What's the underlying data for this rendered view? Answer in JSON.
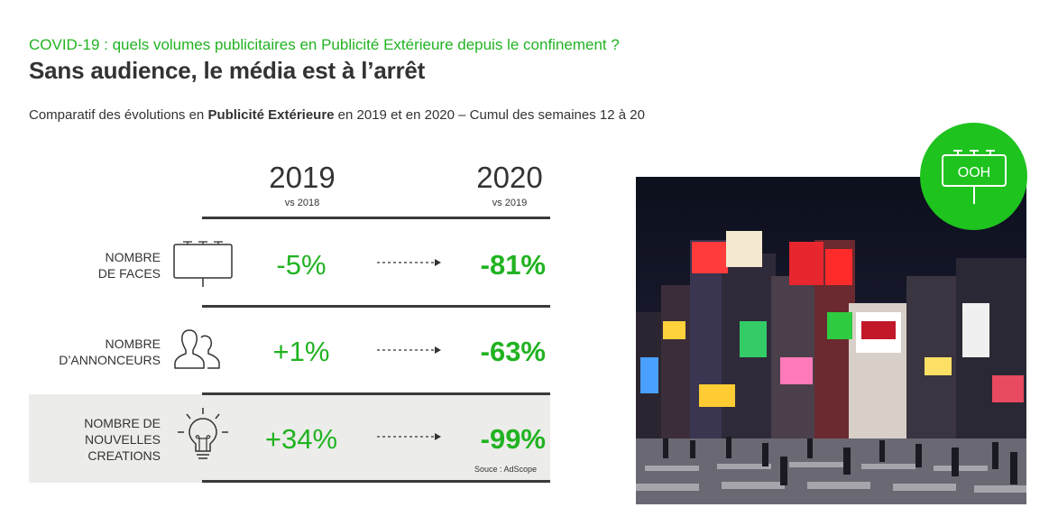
{
  "header": {
    "kicker": "COVID-19 : quels volumes publicitaires en Publicité Extérieure depuis le confinement ?",
    "title": "Sans audience, le média est à l’arrêt",
    "subtitle_pre": "Comparatif des évolutions en ",
    "subtitle_bold": "Publicité Extérieure",
    "subtitle_post": " en 2019 et en 2020 – Cumul des semaines 12 à 20"
  },
  "columns": [
    {
      "year": "2019",
      "sub": "vs 2018"
    },
    {
      "year": "2020",
      "sub": "vs 2019"
    }
  ],
  "rows": [
    {
      "label_line1": "NOMBRE",
      "label_line2": "DE FACES",
      "label_line3": "",
      "icon": "billboard-icon",
      "v2019": "-5%",
      "v2020": "-81%"
    },
    {
      "label_line1": "NOMBRE",
      "label_line2": "D’ANNONCEURS",
      "label_line3": "",
      "icon": "people-icon",
      "v2019": "+1%",
      "v2020": "-63%"
    },
    {
      "label_line1": "NOMBRE DE",
      "label_line2": "NOUVELLES",
      "label_line3": "CREATIONS",
      "icon": "lightbulb-icon",
      "v2019": "+34%",
      "v2020": "-99%"
    }
  ],
  "source": "Souce : AdScope",
  "badge": {
    "label": "OOH",
    "icon": "billboard-icon"
  },
  "colors": {
    "accent": "#21b321",
    "badge": "#1ec31e",
    "text": "#333333",
    "highlight_row": "#ececea"
  }
}
